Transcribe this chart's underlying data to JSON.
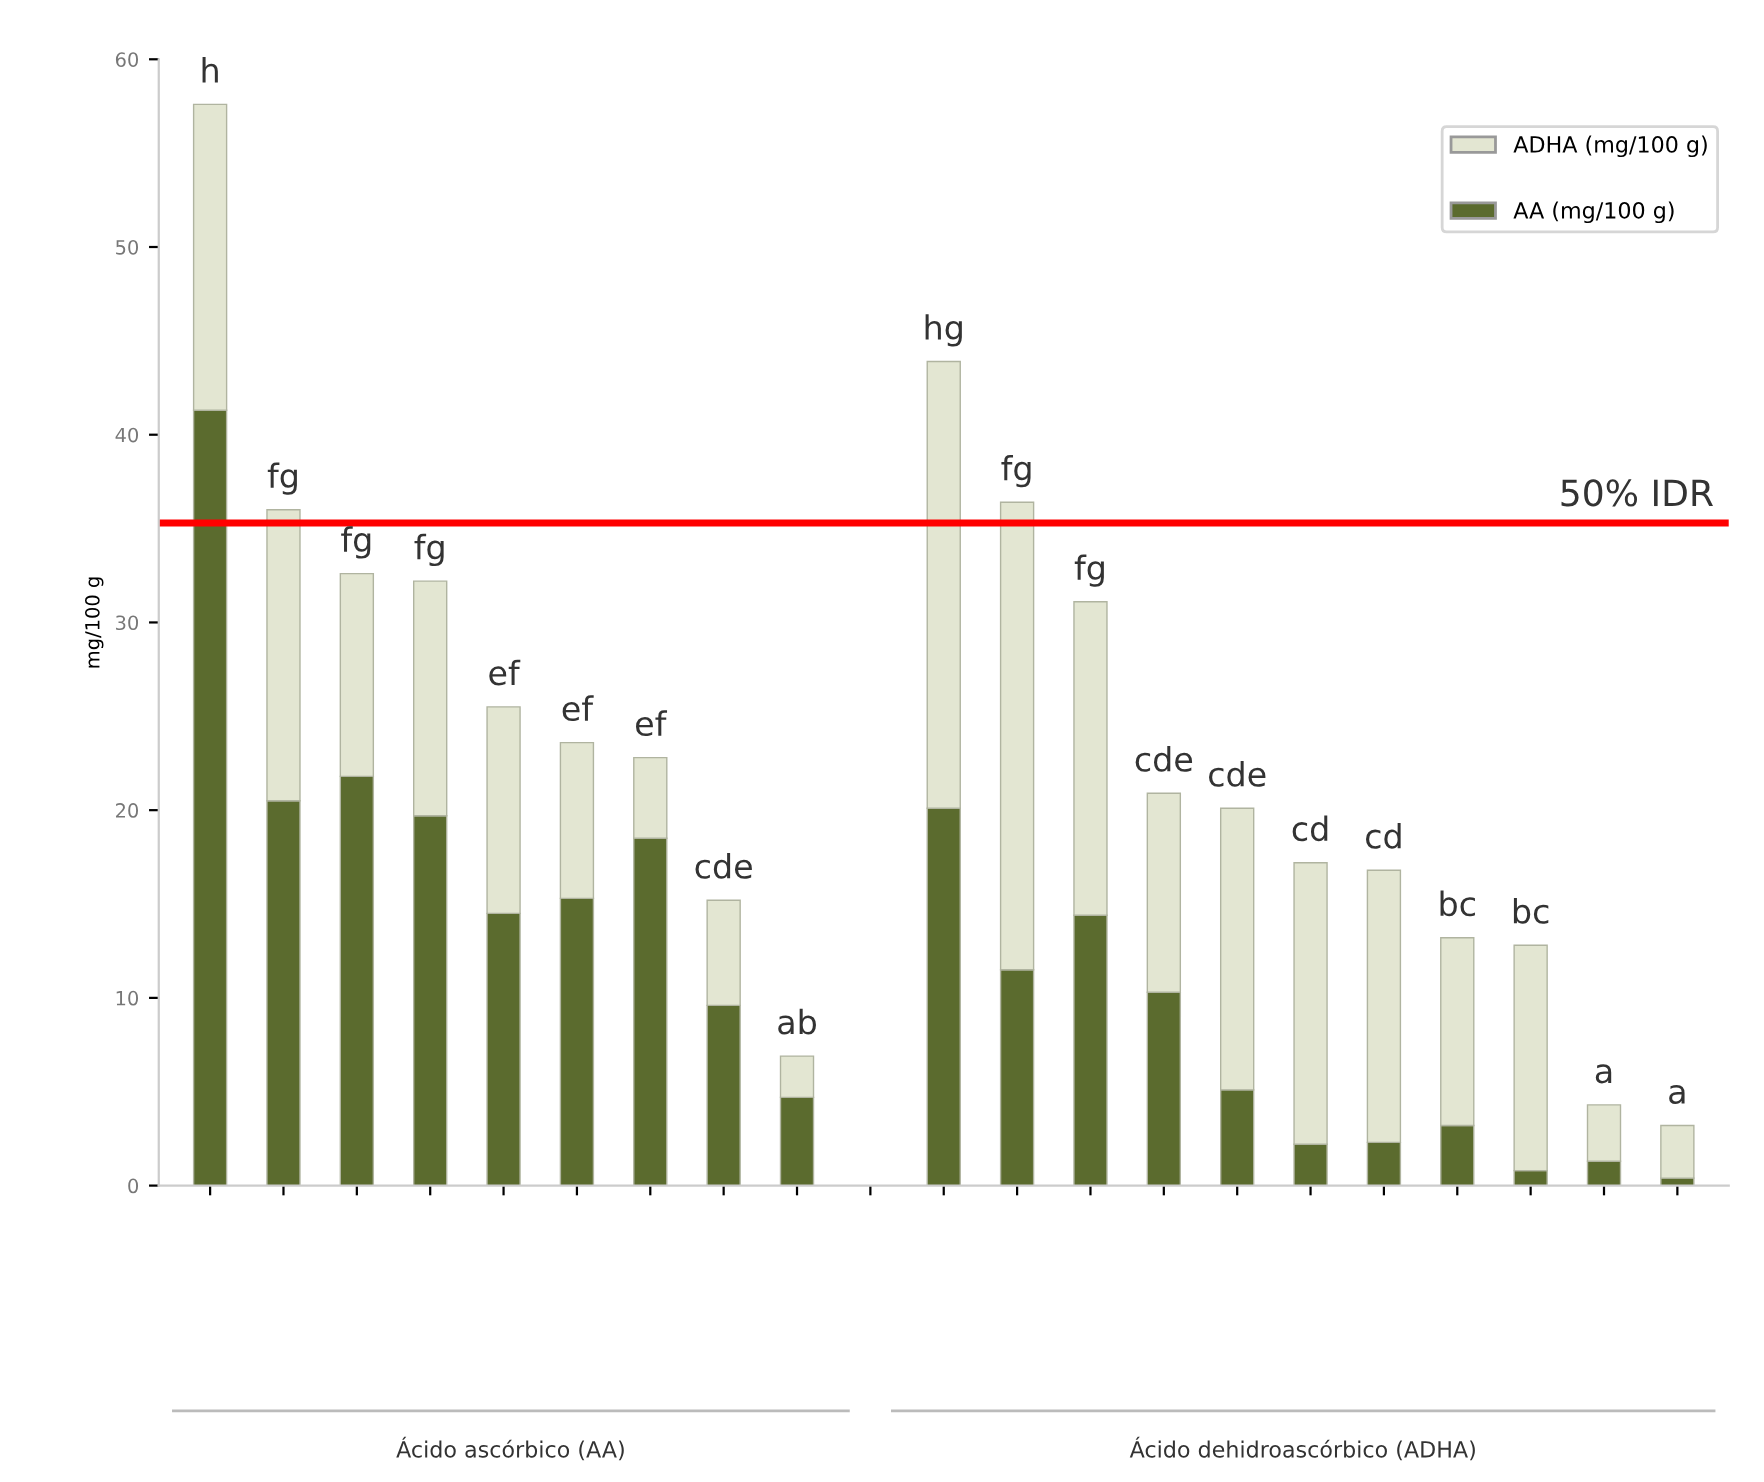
{
  "chart_data": {
    "type": "bar",
    "stacked": true,
    "ylabel": "mg/100 g",
    "categories": [
      null,
      null,
      null,
      null,
      null,
      null,
      null,
      null,
      null,
      null,
      null,
      null,
      null,
      null,
      null,
      null,
      null,
      null,
      null,
      null,
      null
    ],
    "series": [
      {
        "name": "AA (mg/100 g)",
        "color": "#5b6b2e",
        "values": [
          41.3,
          20.5,
          21.8,
          19.7,
          14.5,
          15.3,
          18.5,
          9.6,
          4.7,
          null,
          20.1,
          11.5,
          14.4,
          10.3,
          5.1,
          2.2,
          2.3,
          3.2,
          0.8,
          1.3,
          0.4
        ]
      },
      {
        "name": "ADHA (mg/100 g)",
        "color": "#e3e6d2",
        "values": [
          16.3,
          15.5,
          10.8,
          12.5,
          11.0,
          8.3,
          4.3,
          5.6,
          2.2,
          null,
          23.8,
          24.9,
          16.7,
          10.6,
          15.0,
          15.0,
          14.5,
          10.0,
          12.0,
          3.0,
          2.8
        ],
        "value_labels": [
          "h",
          "fg",
          "fg",
          "fg",
          "ef",
          "ef",
          "ef",
          "cde",
          "ab",
          null,
          "hg",
          "fg",
          "fg",
          "cde",
          "cde",
          "cd",
          "cd",
          "bc",
          "bc",
          "a",
          "a"
        ]
      }
    ],
    "ylim": [
      0,
      60
    ],
    "yticks": [
      0,
      10,
      20,
      30,
      40,
      50,
      60
    ],
    "grid": false,
    "legend": "top right",
    "ref_lines": [
      {
        "axis": "y",
        "value": 35.3,
        "label": "50% IDR",
        "color": "#ff0000"
      }
    ],
    "annotations": [
      "Ácido ascórbico (AA)",
      "Ácido dehidroascórbico (ADHA)"
    ]
  }
}
